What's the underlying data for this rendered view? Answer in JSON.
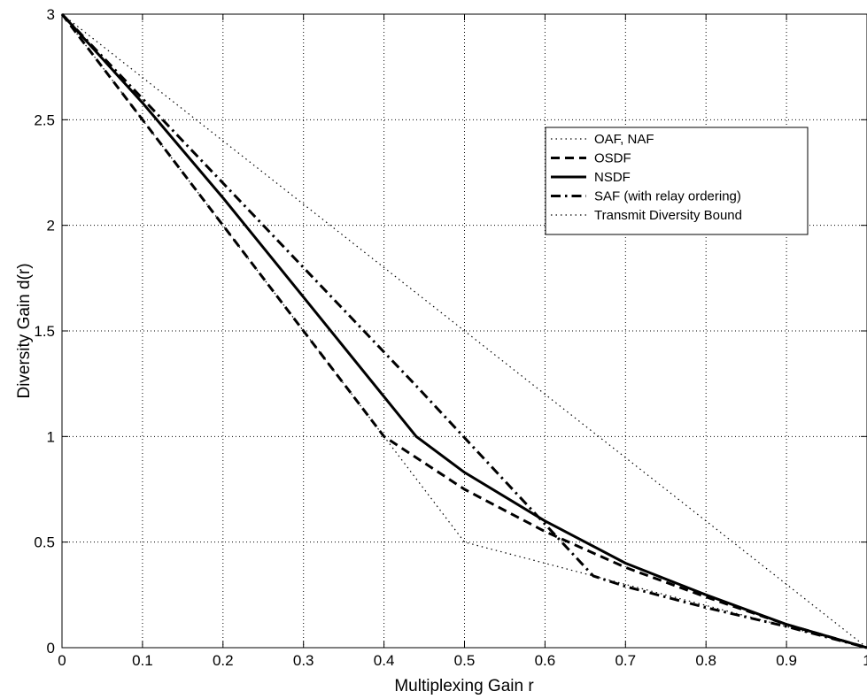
{
  "chart_data": {
    "type": "line",
    "title": "",
    "xlabel": "Multiplexing Gain r",
    "ylabel": "Diversity Gain d(r)",
    "xlim": [
      0,
      1
    ],
    "ylim": [
      0,
      3
    ],
    "xticks": [
      0,
      0.1,
      0.2,
      0.3,
      0.4,
      0.5,
      0.6,
      0.7,
      0.8,
      0.9,
      1
    ],
    "xtick_labels": [
      "0",
      "0.1",
      "0.2",
      "0.3",
      "0.4",
      "0.5",
      "0.6",
      "0.7",
      "0.8",
      "0.9",
      "1"
    ],
    "yticks": [
      0,
      0.5,
      1,
      1.5,
      2,
      2.5,
      3
    ],
    "ytick_labels": [
      "0",
      "0.5",
      "1",
      "1.5",
      "2",
      "2.5",
      "3"
    ],
    "grid": true,
    "legend_position": "upper-right",
    "series": [
      {
        "name": "OAF, NAF",
        "style": "dotted",
        "width": 1.2,
        "x": [
          0,
          0.5,
          1
        ],
        "y": [
          3,
          0.5,
          0
        ]
      },
      {
        "name": "OSDF",
        "style": "dashed",
        "width": 3,
        "x": [
          0,
          0.1,
          0.2,
          0.3,
          0.4,
          0.5,
          0.6,
          0.7,
          0.8,
          0.9,
          1
        ],
        "y": [
          3,
          2.5,
          2.0,
          1.5,
          1.0,
          0.75,
          0.55,
          0.38,
          0.24,
          0.11,
          0
        ]
      },
      {
        "name": "NSDF",
        "style": "solid",
        "width": 3,
        "x": [
          0,
          0.1,
          0.2,
          0.3,
          0.44,
          0.5,
          0.6,
          0.7,
          0.8,
          0.9,
          1
        ],
        "y": [
          3,
          2.58,
          2.13,
          1.66,
          1.0,
          0.83,
          0.6,
          0.4,
          0.25,
          0.11,
          0
        ]
      },
      {
        "name": "SAF (with relay ordering)",
        "style": "dashdot",
        "width": 3,
        "x": [
          0,
          0.44,
          0.66,
          0.7,
          0.8,
          0.9,
          1
        ],
        "y": [
          3,
          1.24,
          0.34,
          0.29,
          0.19,
          0.1,
          0
        ]
      },
      {
        "name": "Transmit Diversity Bound",
        "style": "dotted",
        "width": 1.2,
        "x": [
          0,
          1
        ],
        "y": [
          3,
          0
        ]
      }
    ]
  }
}
